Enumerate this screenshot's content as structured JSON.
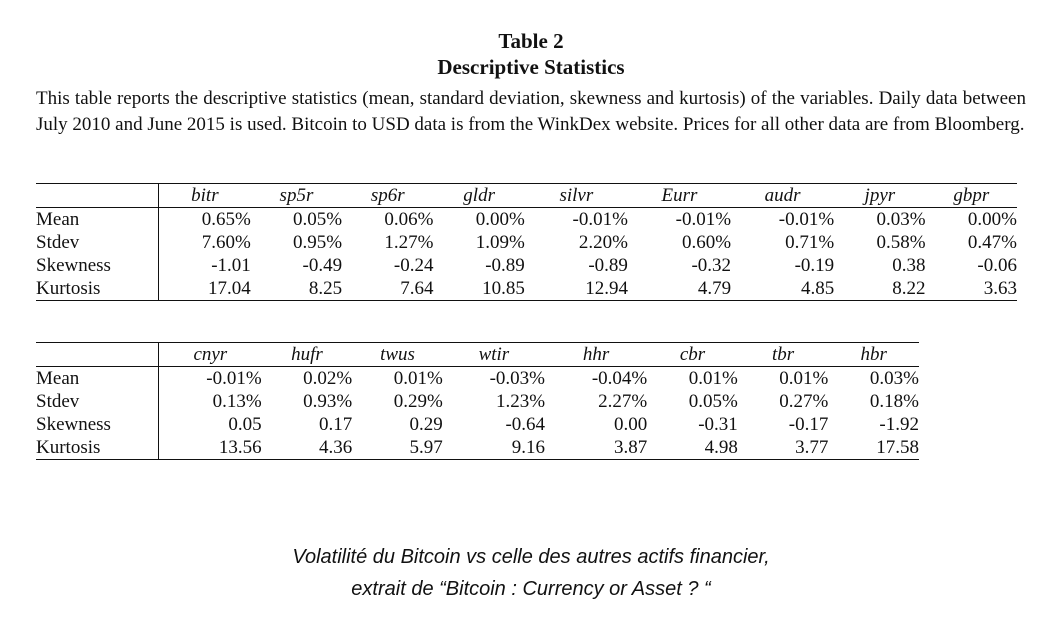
{
  "title": {
    "line1": "Table 2",
    "line2": "Descriptive Statistics"
  },
  "intro": "This table reports the descriptive statistics (mean, standard deviation, skewness and kurtosis) of the variables. Daily data between July 2010 and June 2015 is used. Bitcoin to USD data is from the WinkDex website. Prices for all other data are from Bloomberg.",
  "table1": {
    "columns": [
      "bitr",
      "sp5r",
      "sp6r",
      "gldr",
      "silvr",
      "Eurr",
      "audr",
      "jpyr",
      "gbpr"
    ],
    "rows": [
      {
        "label": "Mean",
        "values": [
          "0.65%",
          "0.05%",
          "0.06%",
          "0.00%",
          "-0.01%",
          "-0.01%",
          "-0.01%",
          "0.03%",
          "0.00%"
        ]
      },
      {
        "label": "Stdev",
        "values": [
          "7.60%",
          "0.95%",
          "1.27%",
          "1.09%",
          "2.20%",
          "0.60%",
          "0.71%",
          "0.58%",
          "0.47%"
        ]
      },
      {
        "label": "Skewness",
        "values": [
          "-1.01",
          "-0.49",
          "-0.24",
          "-0.89",
          "-0.89",
          "-0.32",
          "-0.19",
          "0.38",
          "-0.06"
        ]
      },
      {
        "label": "Kurtosis",
        "values": [
          "17.04",
          "8.25",
          "7.64",
          "10.85",
          "12.94",
          "4.79",
          "4.85",
          "8.22",
          "3.63"
        ]
      }
    ]
  },
  "table2": {
    "columns": [
      "cnyr",
      "hufr",
      "twus",
      "wtir",
      "hhr",
      "cbr",
      "tbr",
      "hbr"
    ],
    "rows": [
      {
        "label": "Mean",
        "values": [
          "-0.01%",
          "0.02%",
          "0.01%",
          "-0.03%",
          "-0.04%",
          "0.01%",
          "0.01%",
          "0.03%"
        ]
      },
      {
        "label": "Stdev",
        "values": [
          "0.13%",
          "0.93%",
          "0.29%",
          "1.23%",
          "2.27%",
          "0.05%",
          "0.27%",
          "0.18%"
        ]
      },
      {
        "label": "Skewness",
        "values": [
          "0.05",
          "0.17",
          "0.29",
          "-0.64",
          "0.00",
          "-0.31",
          "-0.17",
          "-1.92"
        ]
      },
      {
        "label": "Kurtosis",
        "values": [
          "13.56",
          "4.36",
          "5.97",
          "9.16",
          "3.87",
          "4.98",
          "3.77",
          "17.58"
        ]
      }
    ]
  },
  "caption": {
    "line1": "Volatilité du Bitcoin vs celle des autres actifs financier,",
    "line2": "extrait de “Bitcoin : Currency or Asset ? “"
  }
}
